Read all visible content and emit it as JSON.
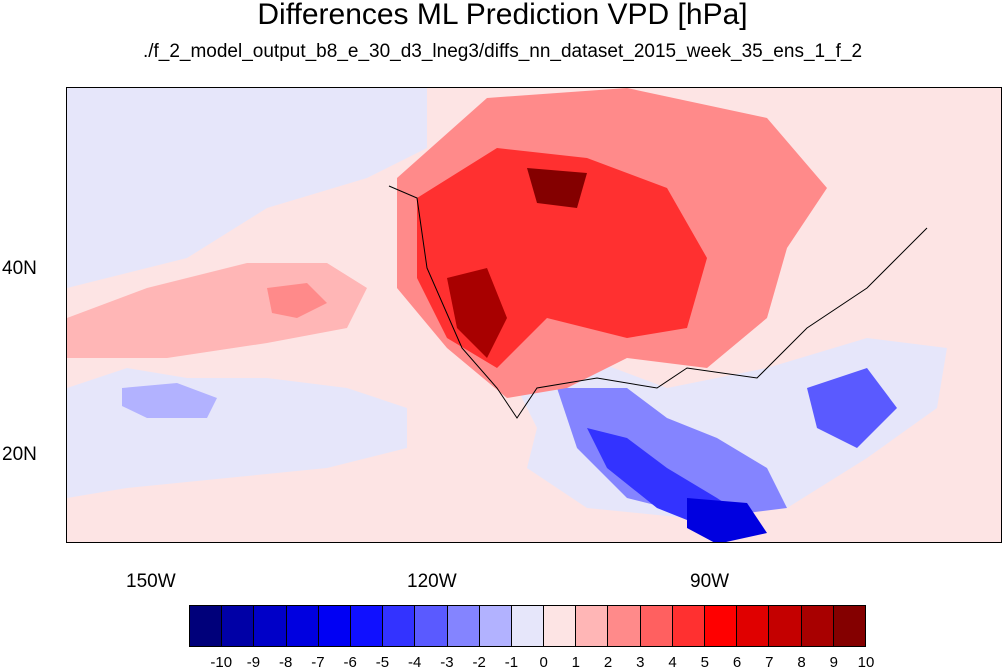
{
  "title": "Differences ML Prediction VPD [hPa]",
  "subtitle": "./f_2_model_output_b8_e_30_d3_lneg3/diffs_nn_dataset_2015_week_35_ens_1_f_2",
  "axes": {
    "lon_labels": [
      "150W",
      "120W",
      "90W"
    ],
    "lat_labels": [
      "40N",
      "20N"
    ]
  },
  "colorbar": {
    "labels": [
      "-10",
      "-9",
      "-8",
      "-7",
      "-6",
      "-5",
      "-4",
      "-3",
      "-2",
      "-1",
      "0",
      "1",
      "2",
      "3",
      "4",
      "5",
      "6",
      "7",
      "8",
      "9",
      "10"
    ],
    "colors": [
      "#00007a",
      "#0000a6",
      "#0000c8",
      "#0000e0",
      "#0000f4",
      "#1010ff",
      "#3333ff",
      "#5a5aff",
      "#8484ff",
      "#b2b2ff",
      "#e6e6fa",
      "#fde4e4",
      "#ffb6b6",
      "#ff8a8a",
      "#ff6060",
      "#ff3030",
      "#ff0000",
      "#e00000",
      "#c40000",
      "#a80000",
      "#840000"
    ]
  },
  "colors": {
    "near_zero_positive": "#fde4e4",
    "near_zero_negative": "#e6e6fa",
    "strong_positive": "#b20000",
    "strong_negative": "#0000c8"
  }
}
